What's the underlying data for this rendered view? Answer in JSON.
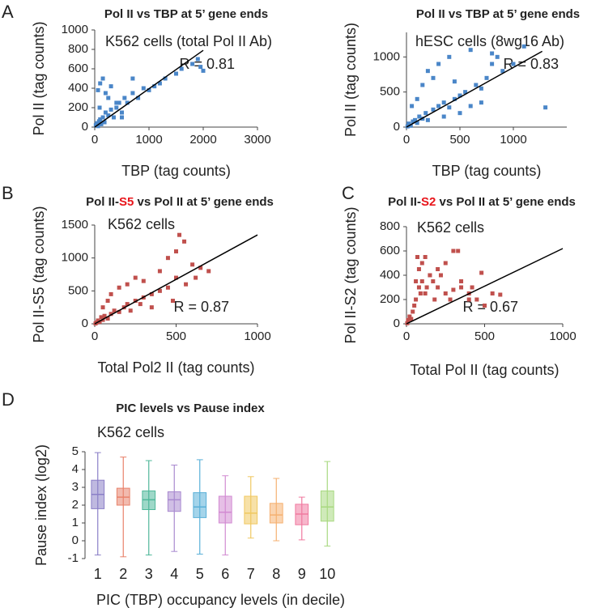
{
  "chart_data": [
    {
      "type": "scatter",
      "panel": "A",
      "title": "Pol II vs TBP at 5’ gene ends",
      "subtitle": "K562 cells (total Pol II Ab)",
      "annotation": "R = 0.81",
      "x_label": "TBP (tag counts)",
      "y_label": "Pol II (tag counts)",
      "xlim": [
        0,
        3000
      ],
      "ylim": [
        0,
        1000
      ],
      "xticks": [
        0,
        1000,
        2000,
        3000
      ],
      "yticks": [
        0,
        200,
        400,
        600,
        800,
        1000
      ],
      "series": [
        {
          "color": "#4a86c8",
          "x": [
            20,
            40,
            60,
            80,
            100,
            120,
            150,
            180,
            200,
            250,
            300,
            350,
            400,
            450,
            500,
            550,
            600,
            700,
            800,
            900,
            1000,
            1100,
            1200,
            1300,
            1500,
            1600,
            1800,
            1900,
            1950,
            2000,
            100,
            150,
            200,
            300,
            400,
            60,
            90,
            250,
            500,
            700
          ],
          "values": [
            20,
            40,
            10,
            60,
            80,
            30,
            100,
            50,
            150,
            120,
            180,
            100,
            200,
            250,
            150,
            300,
            250,
            350,
            300,
            400,
            380,
            420,
            450,
            500,
            550,
            600,
            650,
            700,
            620,
            580,
            450,
            500,
            350,
            420,
            250,
            380,
            200,
            300,
            100,
            500
          ]
        }
      ],
      "trendline": {
        "x": [
          0,
          2000
        ],
        "y": [
          0,
          790
        ],
        "color": "#000000"
      }
    },
    {
      "type": "scatter",
      "title": "Pol II vs TBP at 5’ gene ends",
      "subtitle": "hESC cells (8wg16 Ab)",
      "annotation": "R = 0.83",
      "x_label": "TBP (tag counts)",
      "y_label": "Pol II (tag counts)",
      "xlim": [
        0,
        1500
      ],
      "ylim": [
        0,
        1350
      ],
      "xticks": [
        0,
        500,
        1000
      ],
      "yticks": [
        0,
        500,
        1000
      ],
      "series": [
        {
          "color": "#4a86c8",
          "x": [
            10,
            20,
            40,
            60,
            80,
            100,
            120,
            150,
            180,
            200,
            250,
            300,
            350,
            400,
            450,
            500,
            550,
            600,
            650,
            700,
            750,
            800,
            850,
            900,
            1000,
            1100,
            1300,
            150,
            200,
            300,
            400,
            100,
            250,
            500,
            600,
            800,
            50,
            350,
            450,
            700
          ],
          "values": [
            10,
            50,
            20,
            80,
            100,
            60,
            150,
            120,
            200,
            100,
            250,
            300,
            350,
            280,
            400,
            450,
            500,
            300,
            600,
            550,
            700,
            900,
            1000,
            800,
            900,
            1150,
            280,
            600,
            800,
            900,
            1000,
            400,
            700,
            200,
            1100,
            1050,
            300,
            150,
            650,
            350
          ]
        }
      ],
      "trendline": {
        "x": [
          0,
          1270
        ],
        "y": [
          0,
          1080
        ],
        "color": "#000000"
      }
    },
    {
      "type": "scatter",
      "panel": "B",
      "title_parts": [
        {
          "text": "Pol II-"
        },
        {
          "text": "S5",
          "color": "#e8151b"
        },
        {
          "text": " vs Pol II at 5’ gene ends"
        }
      ],
      "subtitle": "K562 cells",
      "annotation": "R = 0.87",
      "x_label": "Total Pol2 II (tag counts)",
      "y_label": "Pol II-S5 (tag counts)",
      "xlim": [
        0,
        1000
      ],
      "ylim": [
        0,
        1500
      ],
      "xticks": [
        0,
        500,
        1000
      ],
      "yticks": [
        0,
        500,
        1000,
        1500
      ],
      "series": [
        {
          "color": "#c0504d",
          "x": [
            5,
            10,
            20,
            30,
            40,
            50,
            60,
            80,
            100,
            120,
            150,
            180,
            200,
            220,
            250,
            280,
            300,
            350,
            400,
            450,
            500,
            520,
            550,
            600,
            650,
            700,
            100,
            150,
            200,
            250,
            300,
            400,
            450,
            500,
            50,
            80,
            350,
            480,
            560,
            620
          ],
          "values": [
            5,
            20,
            50,
            30,
            100,
            60,
            120,
            80,
            150,
            200,
            180,
            250,
            300,
            200,
            350,
            300,
            400,
            450,
            500,
            550,
            700,
            1350,
            1250,
            900,
            850,
            800,
            450,
            550,
            600,
            700,
            650,
            800,
            1000,
            1100,
            250,
            350,
            250,
            350,
            600,
            700
          ]
        }
      ],
      "trendline": {
        "x": [
          0,
          1000
        ],
        "y": [
          0,
          1350
        ],
        "color": "#000000"
      }
    },
    {
      "type": "scatter",
      "panel": "C",
      "title_parts": [
        {
          "text": "Pol II-"
        },
        {
          "text": "S2",
          "color": "#e8151b"
        },
        {
          "text": " vs Pol II at 5’ gene ends"
        }
      ],
      "subtitle": "K562 cells",
      "annotation": "R = 0.67",
      "x_label": "Total Pol II (tag counts)",
      "y_label": "Pol II-S2 (tag counts)",
      "xlim": [
        0,
        1000
      ],
      "ylim": [
        0,
        800
      ],
      "xticks": [
        0,
        500,
        1000
      ],
      "yticks": [
        0,
        200,
        400,
        600,
        800
      ],
      "series": [
        {
          "color": "#c0504d",
          "x": [
            5,
            10,
            20,
            30,
            40,
            50,
            60,
            80,
            100,
            120,
            150,
            180,
            200,
            250,
            300,
            350,
            400,
            450,
            500,
            550,
            600,
            80,
            100,
            120,
            150,
            200,
            250,
            300,
            350,
            400,
            60,
            70,
            90,
            130,
            170,
            220,
            280,
            330,
            420,
            480
          ],
          "values": [
            5,
            30,
            60,
            40,
            100,
            150,
            200,
            300,
            350,
            250,
            400,
            200,
            300,
            250,
            280,
            350,
            250,
            200,
            150,
            250,
            240,
            450,
            500,
            550,
            400,
            450,
            500,
            600,
            300,
            200,
            350,
            550,
            250,
            300,
            350,
            400,
            200,
            600,
            300,
            420
          ]
        }
      ],
      "trendline": {
        "x": [
          0,
          1000
        ],
        "y": [
          0,
          620
        ],
        "color": "#000000"
      }
    },
    {
      "type": "box",
      "panel": "D",
      "title": "PIC levels vs Pause index",
      "subtitle": "K562 cells",
      "x_label": "PIC (TBP) occupancy levels (in decile)",
      "y_label": "Pause index (log2)",
      "ylim": [
        -1,
        5
      ],
      "yticks": [
        -1,
        0,
        1,
        2,
        3,
        4,
        5
      ],
      "categories": [
        "1",
        "2",
        "3",
        "4",
        "5",
        "6",
        "7",
        "8",
        "9",
        "10"
      ],
      "boxes": [
        {
          "low": -0.8,
          "q1": 1.8,
          "median": 2.6,
          "q3": 3.4,
          "high": 4.95,
          "color": "#8b7fc7"
        },
        {
          "low": -0.9,
          "q1": 2.0,
          "median": 2.45,
          "q3": 2.95,
          "high": 4.7,
          "color": "#e8826b"
        },
        {
          "low": -0.8,
          "q1": 1.75,
          "median": 2.3,
          "q3": 2.8,
          "high": 4.5,
          "color": "#4fb89a"
        },
        {
          "low": -0.6,
          "q1": 1.65,
          "median": 2.3,
          "q3": 2.75,
          "high": 4.25,
          "color": "#a98ad0"
        },
        {
          "low": -0.75,
          "q1": 1.3,
          "median": 1.9,
          "q3": 2.7,
          "high": 4.55,
          "color": "#5ab0d8"
        },
        {
          "low": -0.8,
          "q1": 1.0,
          "median": 1.6,
          "q3": 2.5,
          "high": 3.65,
          "color": "#d28ad2"
        },
        {
          "low": 0.15,
          "q1": 0.95,
          "median": 1.55,
          "q3": 2.5,
          "high": 3.6,
          "color": "#f0c860"
        },
        {
          "low": 0.0,
          "q1": 1.0,
          "median": 1.45,
          "q3": 2.1,
          "high": 3.5,
          "color": "#f5b070"
        },
        {
          "low": 0.05,
          "q1": 0.9,
          "median": 1.5,
          "q3": 2.05,
          "high": 2.45,
          "color": "#f07aa0"
        },
        {
          "low": -0.3,
          "q1": 1.1,
          "median": 1.9,
          "q3": 2.8,
          "high": 4.45,
          "color": "#a8d880"
        }
      ]
    }
  ]
}
